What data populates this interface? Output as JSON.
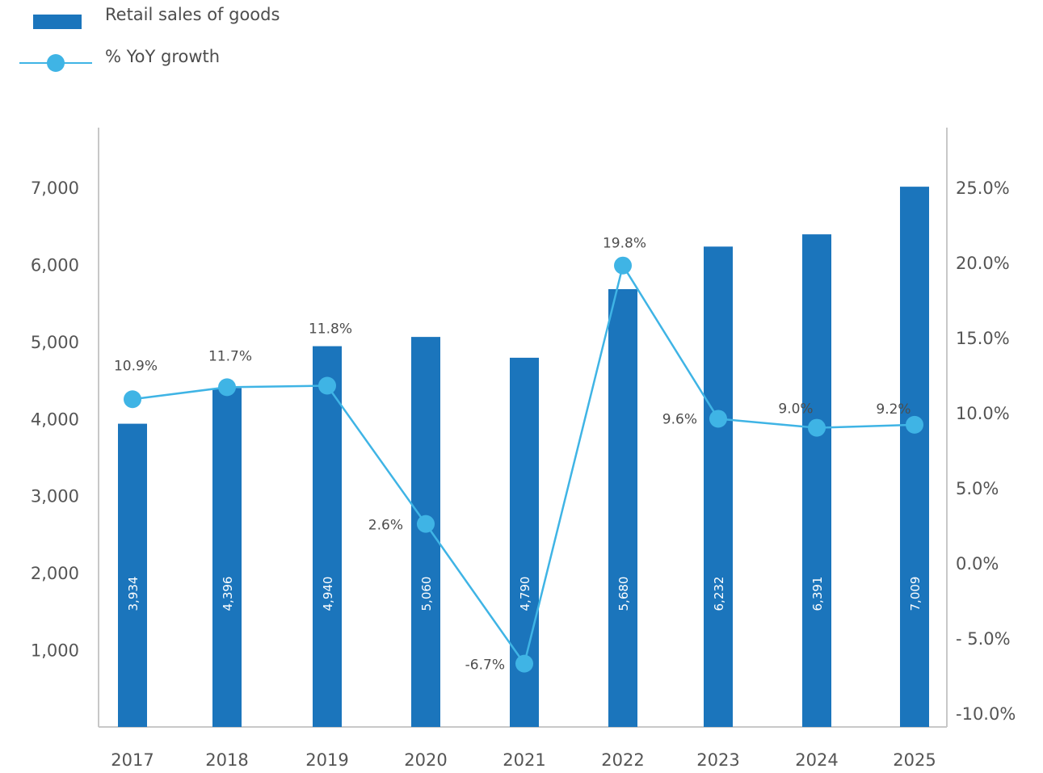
{
  "legend": {
    "bar_label": "Retail sales of goods",
    "line_label": "% YoY growth"
  },
  "colors": {
    "bar": "#1b75bc",
    "line": "#3fb4e5",
    "axis": "#c8c8c8"
  },
  "chart_data": {
    "type": "bar",
    "categories": [
      "2017",
      "2018",
      "2019",
      "2020",
      "2021",
      "2022",
      "2023",
      "2024",
      "2025"
    ],
    "series": [
      {
        "name": "Retail sales of goods",
        "type": "bar",
        "axis": "left",
        "values": [
          3934,
          4396,
          4940,
          5060,
          4790,
          5680,
          6232,
          6391,
          7009
        ],
        "value_labels": [
          "3,934",
          "4,396",
          "4,940",
          "5,060",
          "4,790",
          "5,680",
          "6,232",
          "6,391",
          "7,009"
        ]
      },
      {
        "name": "% YoY growth",
        "type": "line",
        "axis": "right",
        "values": [
          10.9,
          11.7,
          11.8,
          2.6,
          -6.7,
          19.8,
          9.6,
          9.0,
          9.2
        ],
        "value_labels": [
          "10.9%",
          "11.7%",
          "11.8%",
          "2.6%",
          "-6.7%",
          "19.8%",
          "9.6%",
          "9.0%",
          "9.2%"
        ]
      }
    ],
    "y_left_ticks": [
      "1,000",
      "2,000",
      "3,000",
      "4,000",
      "5,000",
      "6,000",
      "7,000"
    ],
    "y_right_ticks": [
      "25.0%",
      "20.0%",
      "15.0%",
      "10.0%",
      "5.0%",
      "0.0%",
      "- 5.0%",
      "-10.0%"
    ],
    "grid": false,
    "legend_position": "top-left"
  }
}
